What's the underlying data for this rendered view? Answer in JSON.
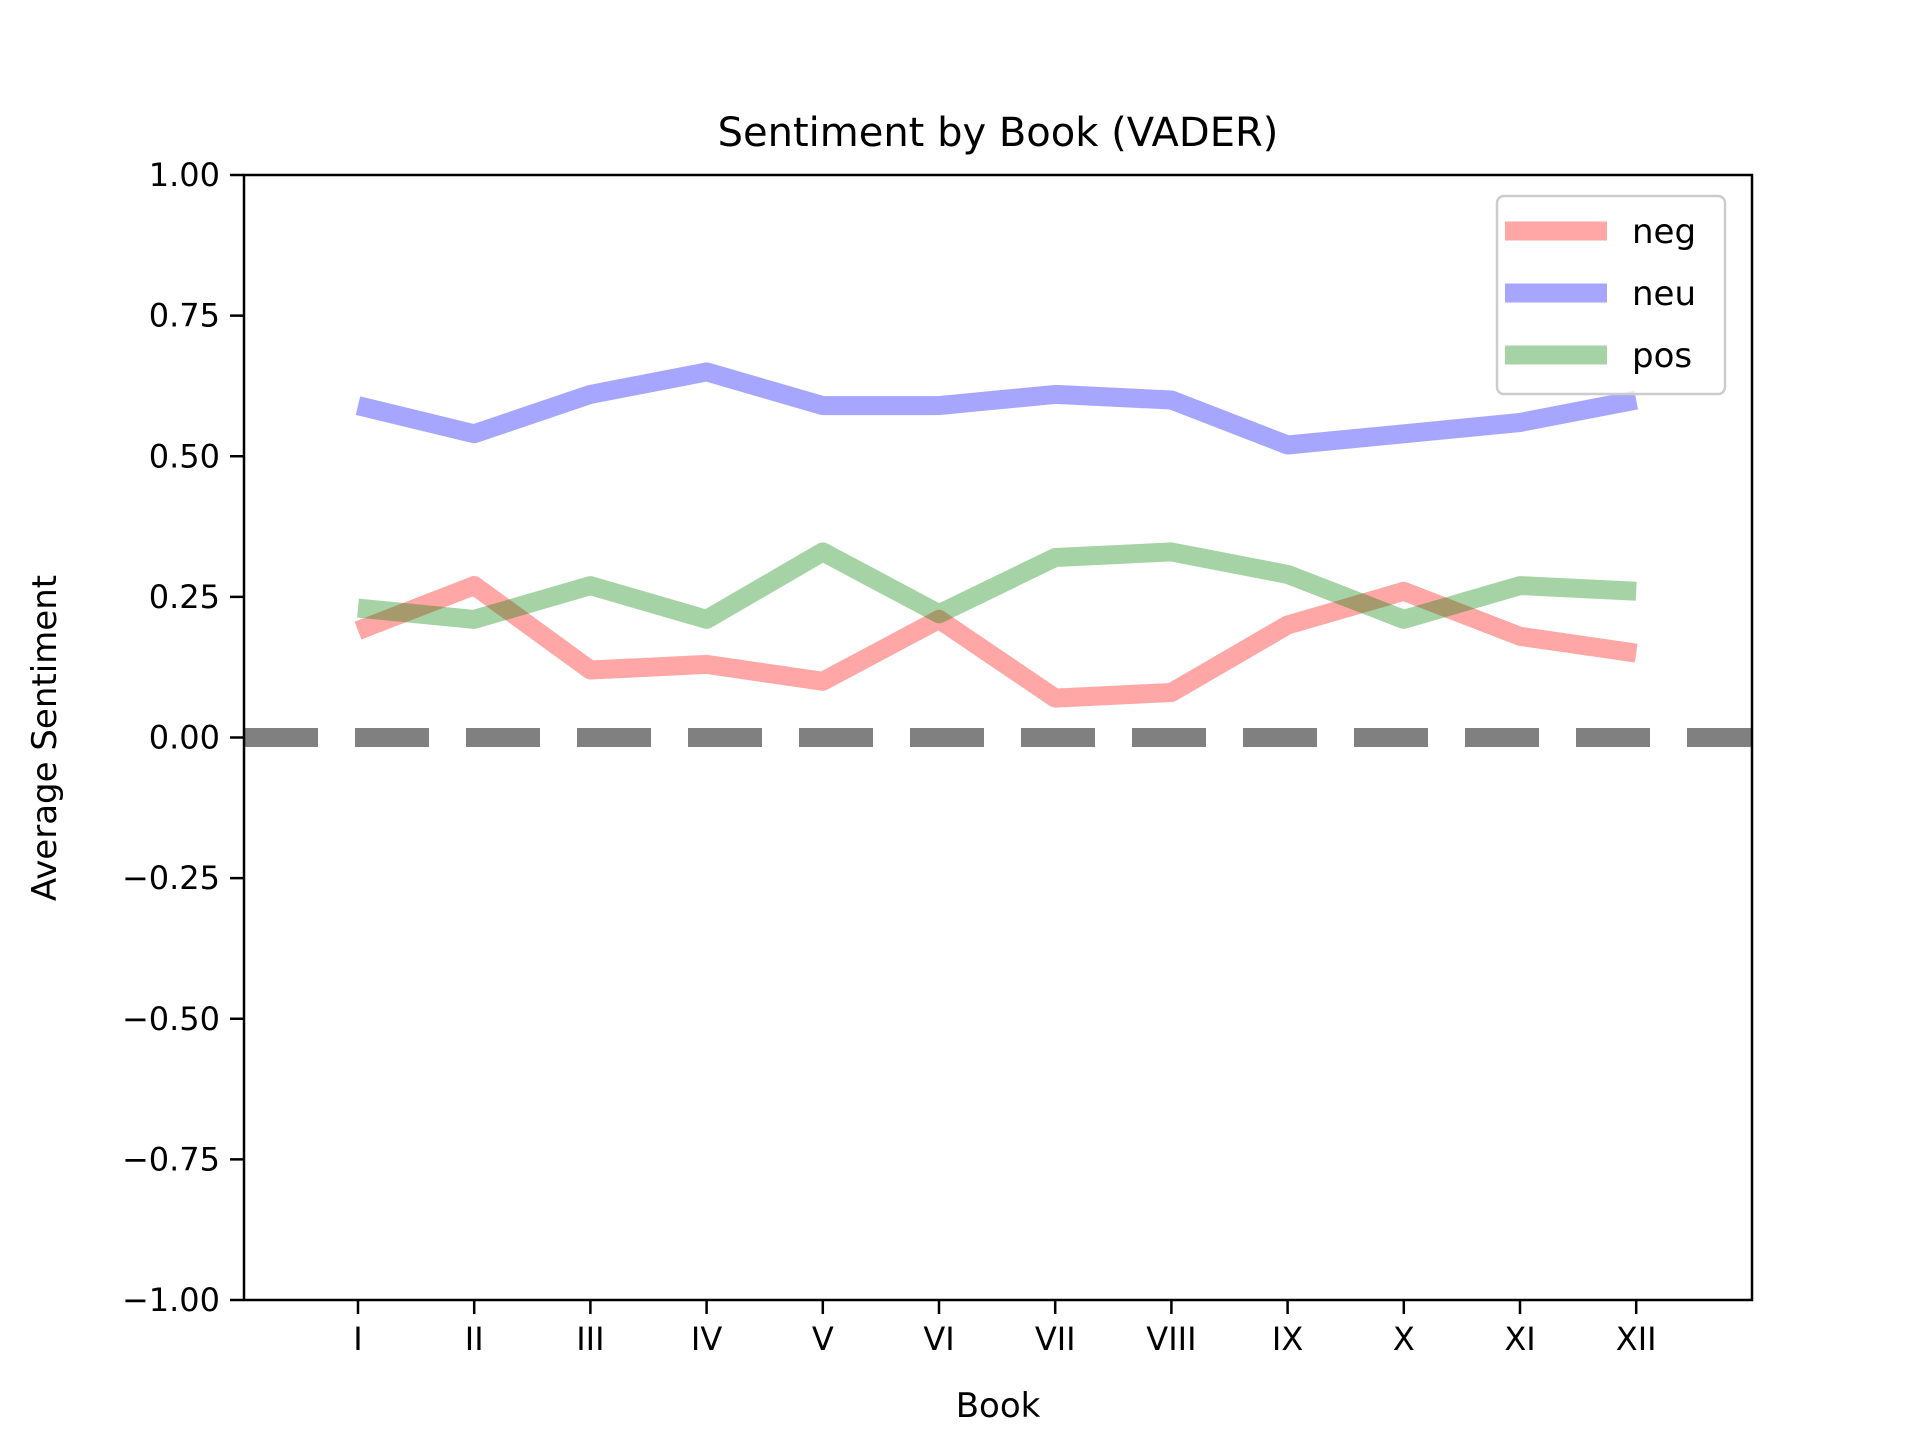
{
  "chart_data": {
    "type": "line",
    "title": "Sentiment by Book (VADER)",
    "xlabel": "Book",
    "ylabel": "Average Sentiment",
    "categories": [
      "I",
      "II",
      "III",
      "IV",
      "V",
      "VI",
      "VII",
      "VIII",
      "IX",
      "X",
      "XI",
      "XII"
    ],
    "ylim": [
      -1.0,
      1.0
    ],
    "yticks": [
      "−1.00",
      "−0.75",
      "−0.50",
      "−0.25",
      "0.00",
      "0.25",
      "0.50",
      "0.75",
      "1.00"
    ],
    "ytick_values": [
      -1.0,
      -0.75,
      -0.5,
      -0.25,
      0.0,
      0.25,
      0.5,
      0.75,
      1.0
    ],
    "series": [
      {
        "name": "neg",
        "color": "#ff0000",
        "alpha": 0.35,
        "values": [
          0.19,
          0.27,
          0.12,
          0.13,
          0.1,
          0.21,
          0.07,
          0.08,
          0.2,
          0.26,
          0.18,
          0.15
        ]
      },
      {
        "name": "neu",
        "color": "#0000ff",
        "alpha": 0.35,
        "values": [
          0.59,
          0.54,
          0.61,
          0.65,
          0.59,
          0.59,
          0.61,
          0.6,
          0.52,
          0.54,
          0.56,
          0.6
        ]
      },
      {
        "name": "pos",
        "color": "#008000",
        "alpha": 0.35,
        "values": [
          0.23,
          0.21,
          0.27,
          0.21,
          0.33,
          0.22,
          0.32,
          0.33,
          0.29,
          0.21,
          0.27,
          0.26
        ]
      }
    ],
    "reference_line": {
      "y": 0.0,
      "color": "#808080",
      "style": "dashed"
    },
    "legend_position": "top-right",
    "grid": false
  }
}
